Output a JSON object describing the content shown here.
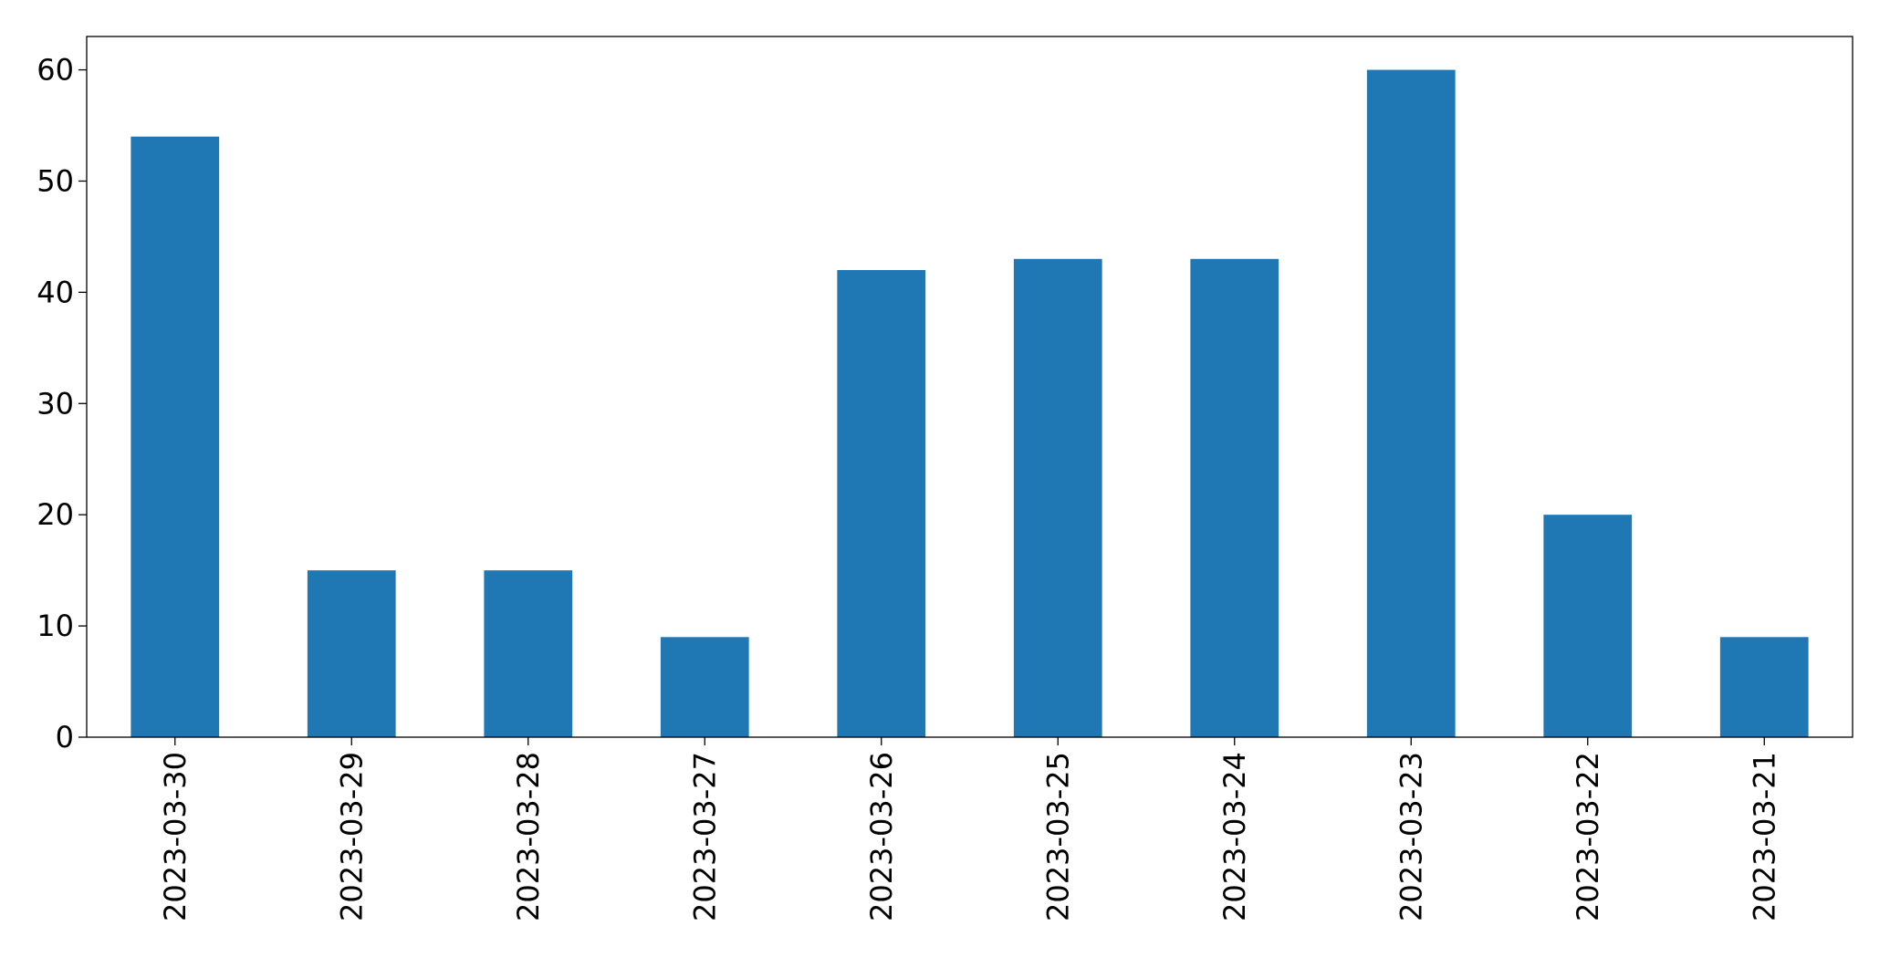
{
  "chart_data": {
    "type": "bar",
    "categories": [
      "2023-03-30",
      "2023-03-29",
      "2023-03-28",
      "2023-03-27",
      "2023-03-26",
      "2023-03-25",
      "2023-03-24",
      "2023-03-23",
      "2023-03-22",
      "2023-03-21"
    ],
    "values": [
      54,
      15,
      15,
      9,
      42,
      43,
      43,
      60,
      20,
      9
    ],
    "color": "#1f77b4",
    "ylim": [
      0,
      63
    ],
    "yticks": [
      0,
      10,
      20,
      30,
      40,
      50,
      60
    ],
    "grid": false
  }
}
